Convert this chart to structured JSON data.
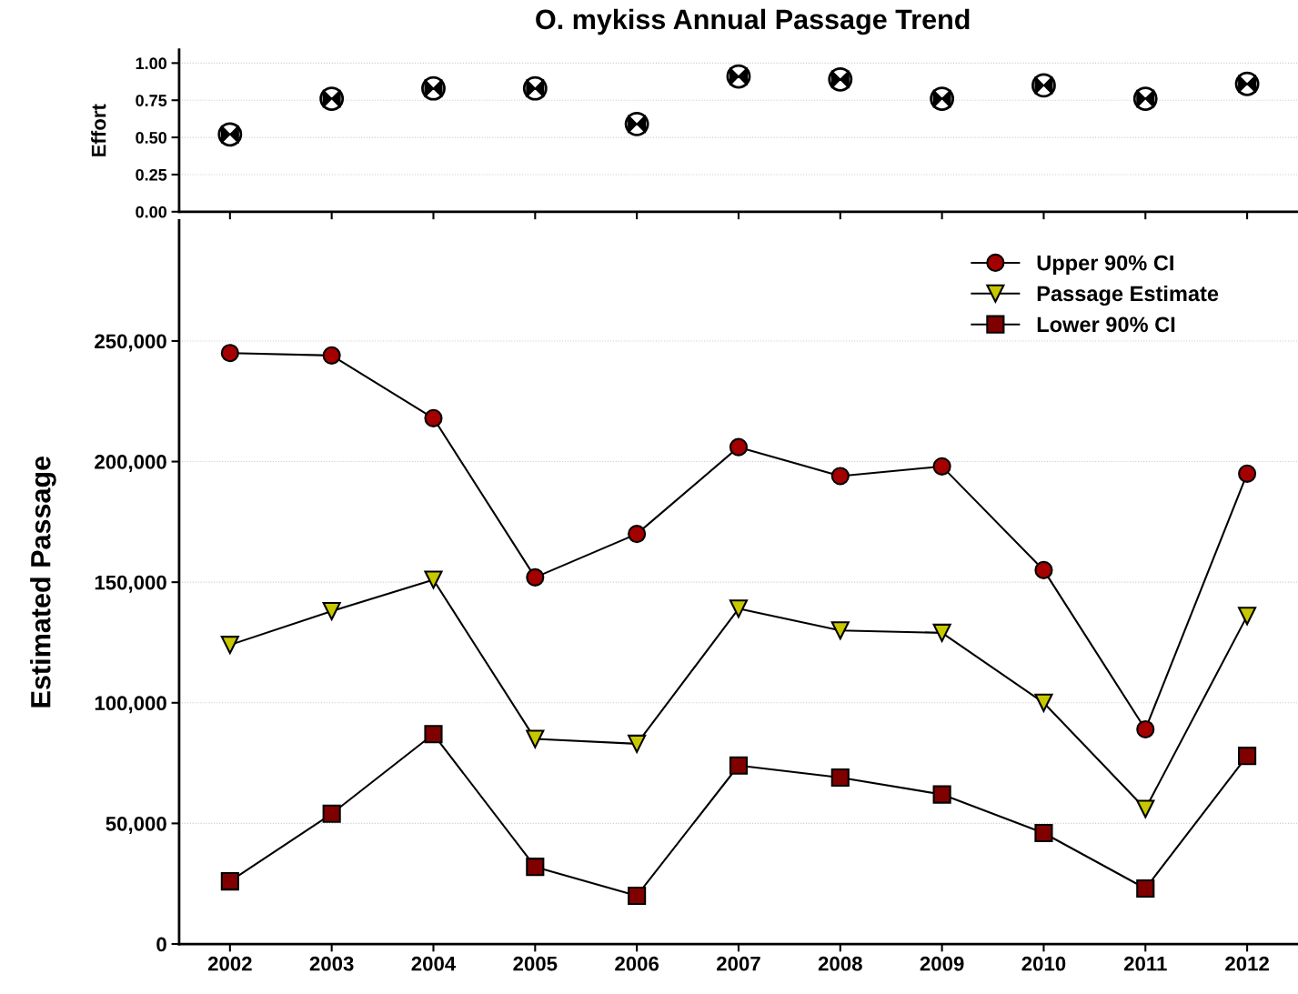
{
  "chart_data": [
    {
      "type": "scatter",
      "title": "O. mykiss Annual Passage Trend",
      "ylabel": "Effort",
      "categories": [
        "2002",
        "2003",
        "2004",
        "2005",
        "2006",
        "2007",
        "2008",
        "2009",
        "2010",
        "2011",
        "2012"
      ],
      "values": [
        0.52,
        0.76,
        0.83,
        0.83,
        0.59,
        0.91,
        0.89,
        0.76,
        0.85,
        0.76,
        0.86
      ],
      "color": "#000000",
      "marker": "circle",
      "ylim": [
        0,
        1.09
      ],
      "yticks": [
        {
          "value": 0,
          "label": "0.00"
        },
        {
          "value": 0.25,
          "label": "0.25"
        },
        {
          "value": 0.5,
          "label": "0.50"
        },
        {
          "value": 0.75,
          "label": "0.75"
        },
        {
          "value": 1,
          "label": "1.00"
        }
      ],
      "grid": "y",
      "tick_labels": "y"
    },
    {
      "type": "line",
      "ylabel": "Estimated Passage",
      "categories": [
        "2002",
        "2003",
        "2004",
        "2005",
        "2006",
        "2007",
        "2008",
        "2009",
        "2010",
        "2011",
        "2012"
      ],
      "series": [
        {
          "name": "Upper 90% CI",
          "color": "#a50000",
          "marker": "circle",
          "values": [
            245000,
            244000,
            218000,
            152000,
            170000,
            206000,
            194000,
            198000,
            155000,
            89000,
            195000
          ]
        },
        {
          "name": "Passage Estimate",
          "color": "#c8c800",
          "marker": "triangle",
          "values": [
            124000,
            138000,
            151000,
            85000,
            83000,
            139000,
            130000,
            129000,
            100000,
            56000,
            136000
          ]
        },
        {
          "name": "Lower 90% CI",
          "color": "#800000",
          "marker": "square",
          "values": [
            26000,
            54000,
            87000,
            32000,
            20000,
            74000,
            69000,
            62000,
            46000,
            23000,
            78000
          ]
        }
      ],
      "ylim": [
        0,
        300000
      ],
      "yticks": [
        0,
        {
          "value": 50000,
          "label": "50,000"
        },
        {
          "value": 100000,
          "label": "100,000"
        },
        {
          "value": 150000,
          "label": "150,000"
        },
        {
          "value": 200000,
          "label": "200,000"
        },
        {
          "value": 250000,
          "label": "250,000"
        }
      ],
      "grid": "y",
      "legend": "top right",
      "line_style": "solid"
    }
  ]
}
